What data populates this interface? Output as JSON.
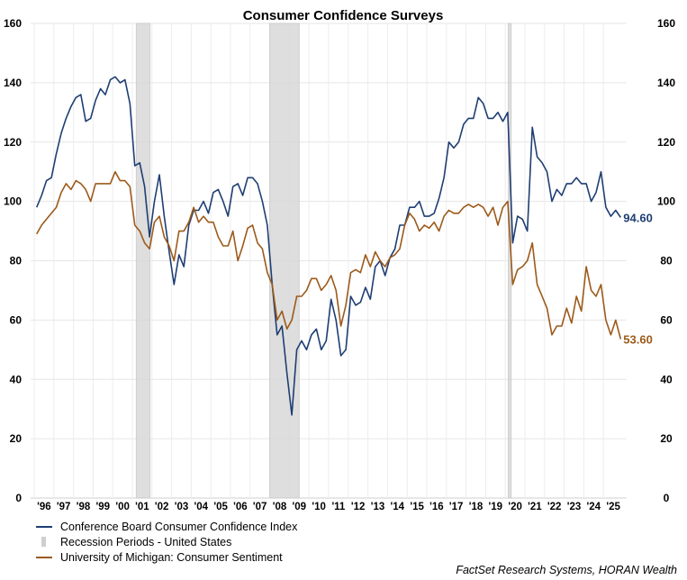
{
  "chart_data": {
    "type": "line",
    "title": "Consumer Confidence Surveys",
    "source": "FactSet Research Systems, HORAN Wealth",
    "ylim": [
      0,
      160
    ],
    "yticks": [
      0,
      20,
      40,
      60,
      80,
      100,
      120,
      140,
      160
    ],
    "xlim": [
      1996,
      2025.8
    ],
    "xtick_labels": [
      "'96",
      "'97",
      "'98",
      "'99",
      "'00",
      "'01",
      "'02",
      "'03",
      "'04",
      "'05",
      "'06",
      "'07",
      "'08",
      "'09",
      "'10",
      "'11",
      "'12",
      "'13",
      "'14",
      "'15",
      "'16",
      "'17",
      "'18",
      "'19",
      "'20",
      "'21",
      "'22",
      "'23",
      "'24",
      "'25"
    ],
    "grid": true,
    "legend_placement": "bottom-left",
    "sampling": "quarterly, 1996 Q1 onward",
    "recessions": [
      {
        "name": "Recession Periods - United States",
        "start": 2001.2,
        "end": 2001.9
      },
      {
        "start": 2008.0,
        "end": 2009.5
      },
      {
        "start": 2020.15,
        "end": 2020.3
      }
    ],
    "recession_color": "#d9d9d9",
    "series": [
      {
        "name": "Conference Board Consumer Confidence Index",
        "color": "#1f3e73",
        "last_label": "94.60",
        "values": [
          98,
          102,
          107,
          108,
          116,
          123,
          128,
          132,
          135,
          136,
          127,
          128,
          134,
          138,
          136,
          141,
          142,
          140,
          141,
          133,
          112,
          113,
          105,
          88,
          100,
          109,
          95,
          83,
          72,
          82,
          78,
          92,
          97,
          97,
          100,
          96,
          103,
          104,
          100,
          95,
          105,
          106,
          102,
          108,
          108,
          106,
          100,
          92,
          72,
          55,
          58,
          42,
          28,
          50,
          53,
          50,
          55,
          57,
          50,
          53,
          67,
          60,
          48,
          50,
          68,
          65,
          66,
          71,
          67,
          78,
          80,
          75,
          81,
          84,
          92,
          92,
          98,
          98,
          100,
          95,
          95,
          96,
          101,
          108,
          120,
          118,
          120,
          126,
          128,
          128,
          135,
          133,
          128,
          128,
          130,
          127,
          130,
          86,
          95,
          94,
          90,
          125,
          115,
          113,
          110,
          100,
          104,
          102,
          106,
          106,
          108,
          106,
          106,
          100,
          103,
          110,
          98,
          95,
          97,
          94.6
        ]
      },
      {
        "name": "University of Michigan: Consumer Sentiment",
        "color": "#9c5a1a",
        "last_label": "53.60",
        "values": [
          89,
          92,
          94,
          96,
          98,
          103,
          106,
          104,
          107,
          106,
          104,
          100,
          106,
          106,
          106,
          106,
          110,
          107,
          107,
          105,
          92,
          90,
          86,
          84,
          93,
          95,
          88,
          85,
          80,
          90,
          90,
          93,
          98,
          93,
          95,
          93,
          93,
          88,
          85,
          85,
          90,
          80,
          85,
          91,
          92,
          86,
          84,
          76,
          72,
          60,
          63,
          57,
          60,
          68,
          68,
          70,
          74,
          74,
          70,
          72,
          75,
          70,
          58,
          65,
          76,
          77,
          76,
          82,
          78,
          83,
          80,
          78,
          81,
          82,
          84,
          92,
          96,
          94,
          90,
          92,
          91,
          93,
          90,
          95,
          97,
          96,
          96,
          98,
          99,
          98,
          99,
          98,
          95,
          98,
          92,
          98,
          100,
          72,
          77,
          78,
          80,
          86,
          72,
          68,
          64,
          55,
          58,
          58,
          64,
          59,
          68,
          63,
          78,
          70,
          68,
          72,
          60,
          55,
          60,
          53.6
        ]
      }
    ]
  }
}
